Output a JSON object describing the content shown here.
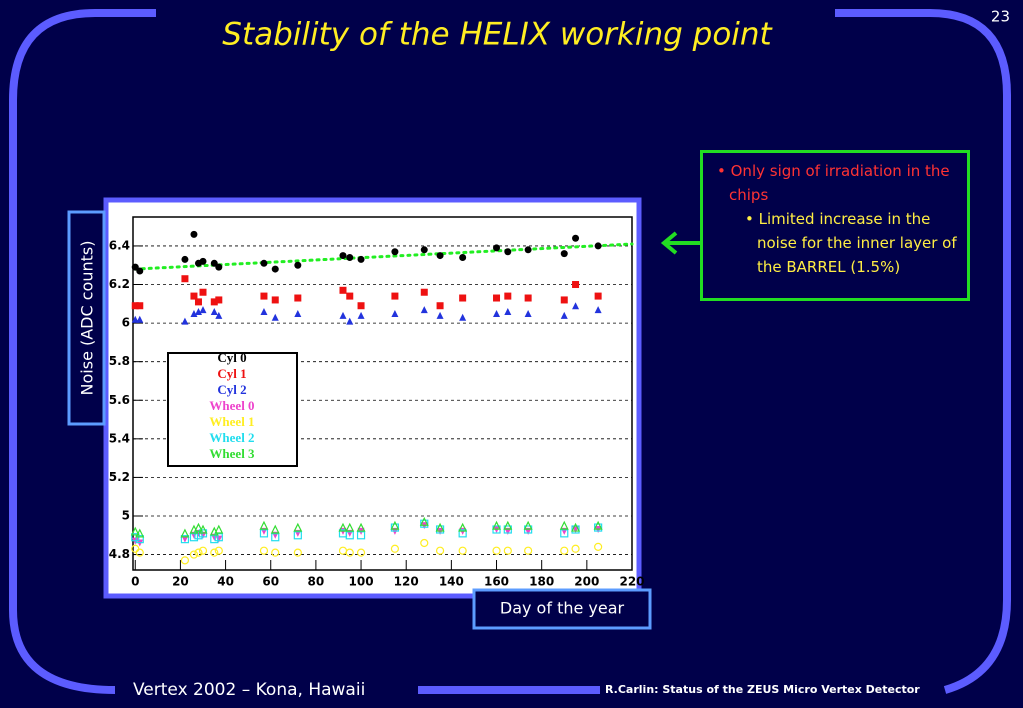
{
  "slide": {
    "title": "Stability of the HELIX working point",
    "page_number": "23",
    "bullets": [
      {
        "text": "Only sign of irradiation in the chips",
        "sub": "Limited increase in the noise for the inner layer of the BARREL (1.5%)"
      }
    ],
    "footer_left": "Vertex 2002 – Kona, Hawaii",
    "footer_right": "R.Carlin: Status of the ZEUS Micro Vertex Detector"
  },
  "chart_data": {
    "type": "scatter",
    "x_label": "Day of the year",
    "y_label": "Noise (ADC counts)",
    "x": [
      0,
      2,
      22,
      26,
      28,
      30,
      35,
      37,
      57,
      62,
      72,
      92,
      95,
      100,
      115,
      128,
      135,
      145,
      160,
      165,
      174,
      190,
      195,
      205
    ],
    "series": [
      {
        "name": "Cyl 0",
        "color": "#000000",
        "marker": "circle",
        "values": [
          6.29,
          6.27,
          6.33,
          6.46,
          6.31,
          6.32,
          6.31,
          6.29,
          6.31,
          6.28,
          6.3,
          6.35,
          6.34,
          6.33,
          6.37,
          6.38,
          6.35,
          6.34,
          6.39,
          6.37,
          6.38,
          6.36,
          6.44,
          6.4
        ]
      },
      {
        "name": "Cyl 1",
        "color": "#ee1111",
        "marker": "square",
        "values": [
          6.09,
          6.09,
          6.23,
          6.14,
          6.11,
          6.16,
          6.11,
          6.12,
          6.14,
          6.12,
          6.13,
          6.17,
          6.14,
          6.09,
          6.14,
          6.16,
          6.09,
          6.13,
          6.13,
          6.14,
          6.13,
          6.12,
          6.2,
          6.14
        ]
      },
      {
        "name": "Cyl 2",
        "color": "#2233dd",
        "marker": "triangle-up",
        "values": [
          6.02,
          6.02,
          6.01,
          6.05,
          6.06,
          6.07,
          6.06,
          6.04,
          6.06,
          6.03,
          6.05,
          6.04,
          6.01,
          6.04,
          6.05,
          6.07,
          6.04,
          6.03,
          6.05,
          6.06,
          6.05,
          6.04,
          6.09,
          6.07
        ]
      },
      {
        "name": "Wheel 0",
        "color": "#ee44cc",
        "marker": "triangle-down",
        "values": [
          4.87,
          4.86,
          4.88,
          4.9,
          4.91,
          4.9,
          4.89,
          4.88,
          4.92,
          4.9,
          4.91,
          4.92,
          4.91,
          4.92,
          4.92,
          4.95,
          4.92,
          4.92,
          4.93,
          4.92,
          4.92,
          4.92,
          4.93,
          4.93
        ]
      },
      {
        "name": "Wheel 1",
        "color": "#ffee22",
        "marker": "open-circle",
        "values": [
          4.83,
          4.81,
          4.77,
          4.8,
          4.81,
          4.82,
          4.81,
          4.82,
          4.82,
          4.81,
          4.81,
          4.82,
          4.81,
          4.81,
          4.83,
          4.86,
          4.82,
          4.82,
          4.82,
          4.82,
          4.82,
          4.82,
          4.83,
          4.84
        ]
      },
      {
        "name": "Wheel 2",
        "color": "#22ddee",
        "marker": "open-square",
        "values": [
          4.89,
          4.88,
          4.88,
          4.89,
          4.9,
          4.91,
          4.88,
          4.89,
          4.91,
          4.89,
          4.9,
          4.91,
          4.9,
          4.9,
          4.94,
          4.96,
          4.93,
          4.91,
          4.93,
          4.93,
          4.93,
          4.91,
          4.93,
          4.94
        ]
      },
      {
        "name": "Wheel 3",
        "color": "#33dd33",
        "marker": "open-triangle-up",
        "values": [
          4.92,
          4.91,
          4.91,
          4.93,
          4.94,
          4.93,
          4.92,
          4.93,
          4.95,
          4.93,
          4.94,
          4.94,
          4.94,
          4.94,
          4.95,
          4.97,
          4.94,
          4.94,
          4.95,
          4.95,
          4.95,
          4.95,
          4.94,
          4.95
        ]
      }
    ],
    "fit": {
      "color": "#22ee22",
      "x": [
        0,
        220
      ],
      "values": [
        6.28,
        6.41
      ]
    },
    "xlim": [
      -1,
      220
    ],
    "ylim": [
      4.72,
      6.55
    ],
    "xticks": [
      0,
      20,
      40,
      60,
      80,
      100,
      120,
      140,
      160,
      180,
      200,
      220
    ],
    "yticks": [
      4.8,
      5,
      5.2,
      5.4,
      5.6,
      5.8,
      6,
      6.2,
      6.4
    ],
    "grid": true,
    "legend": "left"
  }
}
